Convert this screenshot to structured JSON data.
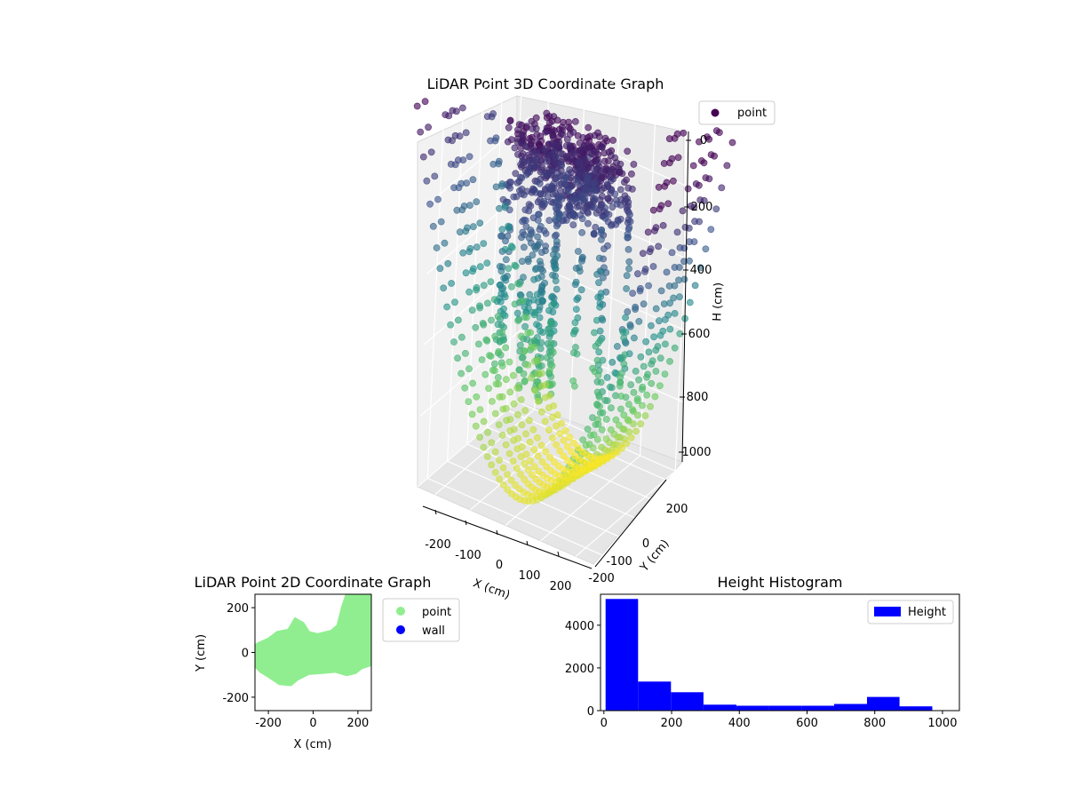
{
  "chart_data": [
    {
      "type": "scatter",
      "title": "LiDAR Point 3D Coordinate Graph",
      "xlabel": "X (cm)",
      "ylabel": "Y (cm)",
      "zlabel": "H (cm)",
      "xlim": [
        -250,
        250
      ],
      "ylim": [
        -250,
        250
      ],
      "zlim": [
        0,
        1000
      ],
      "z_inverted": true,
      "x_ticks": [
        "-200",
        "-100",
        "0",
        "100",
        "200"
      ],
      "y_ticks": [
        "-200",
        "-100",
        "0",
        "200"
      ],
      "z_ticks": [
        "0",
        "200",
        "400",
        "600",
        "800",
        "1000"
      ],
      "colormap": "viridis",
      "legend": {
        "placement": "top-right",
        "entries": [
          {
            "label": "point",
            "color": "#440154"
          }
        ]
      },
      "grid": true
    },
    {
      "type": "scatter",
      "title": "LiDAR Point 2D Coordinate Graph",
      "xlabel": "X (cm)",
      "ylabel": "Y (cm)",
      "xlim": [
        -260,
        260
      ],
      "ylim": [
        -260,
        260
      ],
      "x_ticks": [
        "-200",
        "0",
        "200"
      ],
      "y_ticks": [
        "-200",
        "0",
        "200"
      ],
      "legend": {
        "placement": "outside-right",
        "entries": [
          {
            "label": "point",
            "color": "#90ee90"
          },
          {
            "label": "wall",
            "color": "#0000ff"
          }
        ]
      },
      "series": [
        {
          "name": "point",
          "color": "#90ee90",
          "region": [
            [
              -260,
              -60
            ],
            [
              -235,
              -85
            ],
            [
              -195,
              -110
            ],
            [
              -150,
              -140
            ],
            [
              -100,
              -145
            ],
            [
              -70,
              -120
            ],
            [
              -20,
              -95
            ],
            [
              40,
              -90
            ],
            [
              100,
              -85
            ],
            [
              150,
              -100
            ],
            [
              190,
              -90
            ],
            [
              215,
              -70
            ],
            [
              245,
              -60
            ],
            [
              260,
              -55
            ],
            [
              260,
              260
            ],
            [
              150,
              260
            ],
            [
              130,
              200
            ],
            [
              110,
              120
            ],
            [
              80,
              95
            ],
            [
              20,
              80
            ],
            [
              -20,
              90
            ],
            [
              -45,
              130
            ],
            [
              -80,
              150
            ],
            [
              -110,
              100
            ],
            [
              -160,
              90
            ],
            [
              -200,
              60
            ],
            [
              -245,
              40
            ],
            [
              -260,
              30
            ]
          ]
        },
        {
          "name": "wall",
          "color": "#0000ff",
          "region": []
        }
      ],
      "grid": false
    },
    {
      "type": "bar",
      "title": "Height Histogram",
      "xlabel": "",
      "ylabel": "",
      "xlim": [
        -10,
        1050
      ],
      "ylim": [
        0,
        5450
      ],
      "x_ticks": [
        "0",
        "200",
        "400",
        "600",
        "800",
        "1000"
      ],
      "y_ticks": [
        "0",
        "2000",
        "4000"
      ],
      "bin_edges": [
        5,
        101,
        198,
        294,
        391,
        487,
        584,
        680,
        777,
        873,
        970
      ],
      "values": [
        5230,
        1360,
        860,
        280,
        230,
        230,
        230,
        310,
        640,
        200
      ],
      "color": "#0000ff",
      "legend": {
        "placement": "top-right",
        "entries": [
          {
            "label": "Height",
            "color": "#0000ff"
          }
        ]
      },
      "grid": false
    }
  ]
}
